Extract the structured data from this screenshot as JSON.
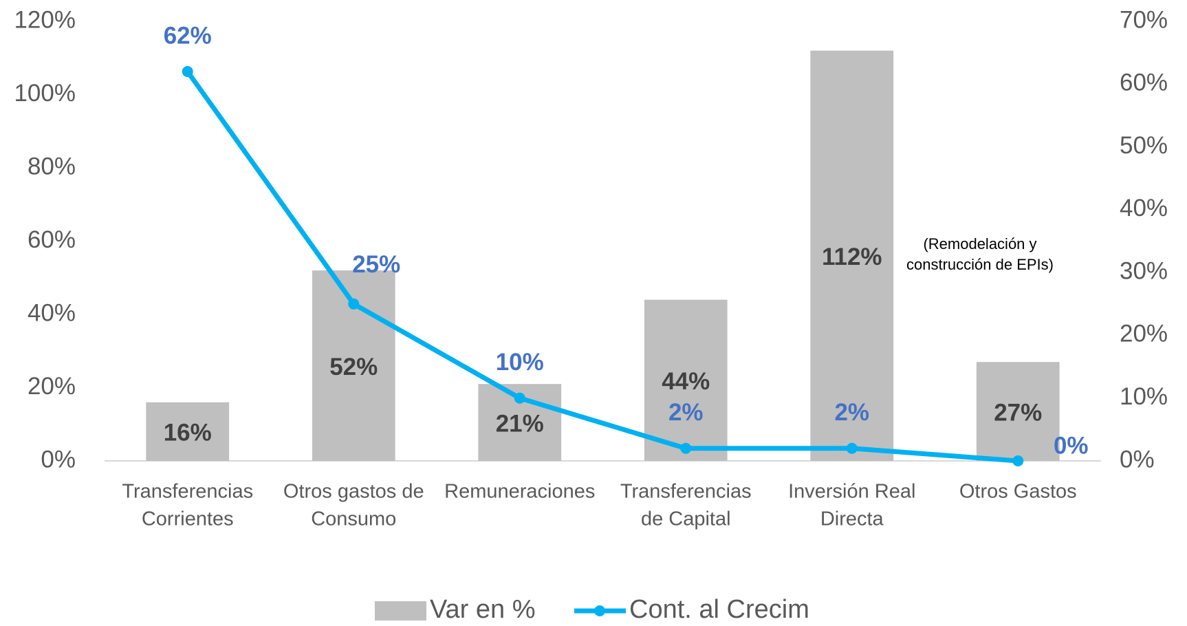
{
  "chart_data": {
    "type": "bar_line",
    "categories": [
      [
        "Transferencias",
        "Corrientes"
      ],
      [
        "Otros gastos de",
        "Consumo"
      ],
      [
        "Remuneraciones"
      ],
      [
        "Transferencias",
        "de Capital"
      ],
      [
        "Inversión Real",
        "Directa"
      ],
      [
        "Otros Gastos"
      ]
    ],
    "series": [
      {
        "name": "Var en %",
        "type": "bar",
        "color": "#bfbfbf",
        "values": [
          16,
          52,
          21,
          44,
          112,
          27
        ],
        "value_labels": [
          "16%",
          "52%",
          "21%",
          "44%",
          "112%",
          "27%"
        ],
        "label_color": "#404040"
      },
      {
        "name": "Cont. al Crecim",
        "type": "line",
        "axis": "y2",
        "color": "#00b0f0",
        "values": [
          62,
          25,
          10,
          2,
          2,
          0
        ],
        "value_labels": [
          "62%",
          "25%",
          "10%",
          "2%",
          "2%",
          "0%"
        ],
        "label_color": "#4472c4"
      }
    ],
    "ylim": [
      0,
      120
    ],
    "yticks": [
      {
        "value": 0,
        "label": "0%"
      },
      {
        "value": 20,
        "label": "20%"
      },
      {
        "value": 40,
        "label": "40%"
      },
      {
        "value": 60,
        "label": "60%"
      },
      {
        "value": 80,
        "label": "80%"
      },
      {
        "value": 100,
        "label": "100%"
      },
      {
        "value": 120,
        "label": "120%"
      }
    ],
    "y2lim": [
      0,
      70
    ],
    "y2ticks": [
      {
        "value": 0,
        "label": "0%"
      },
      {
        "value": 10,
        "label": "10%"
      },
      {
        "value": 20,
        "label": "20%"
      },
      {
        "value": 30,
        "label": "30%"
      },
      {
        "value": 40,
        "label": "40%"
      },
      {
        "value": 50,
        "label": "50%"
      },
      {
        "value": 60,
        "label": "60%"
      },
      {
        "value": 70,
        "label": "70%"
      }
    ],
    "annotation": [
      "(Remodelación y",
      "construcción de EPIs)"
    ],
    "legend": "bottom"
  }
}
